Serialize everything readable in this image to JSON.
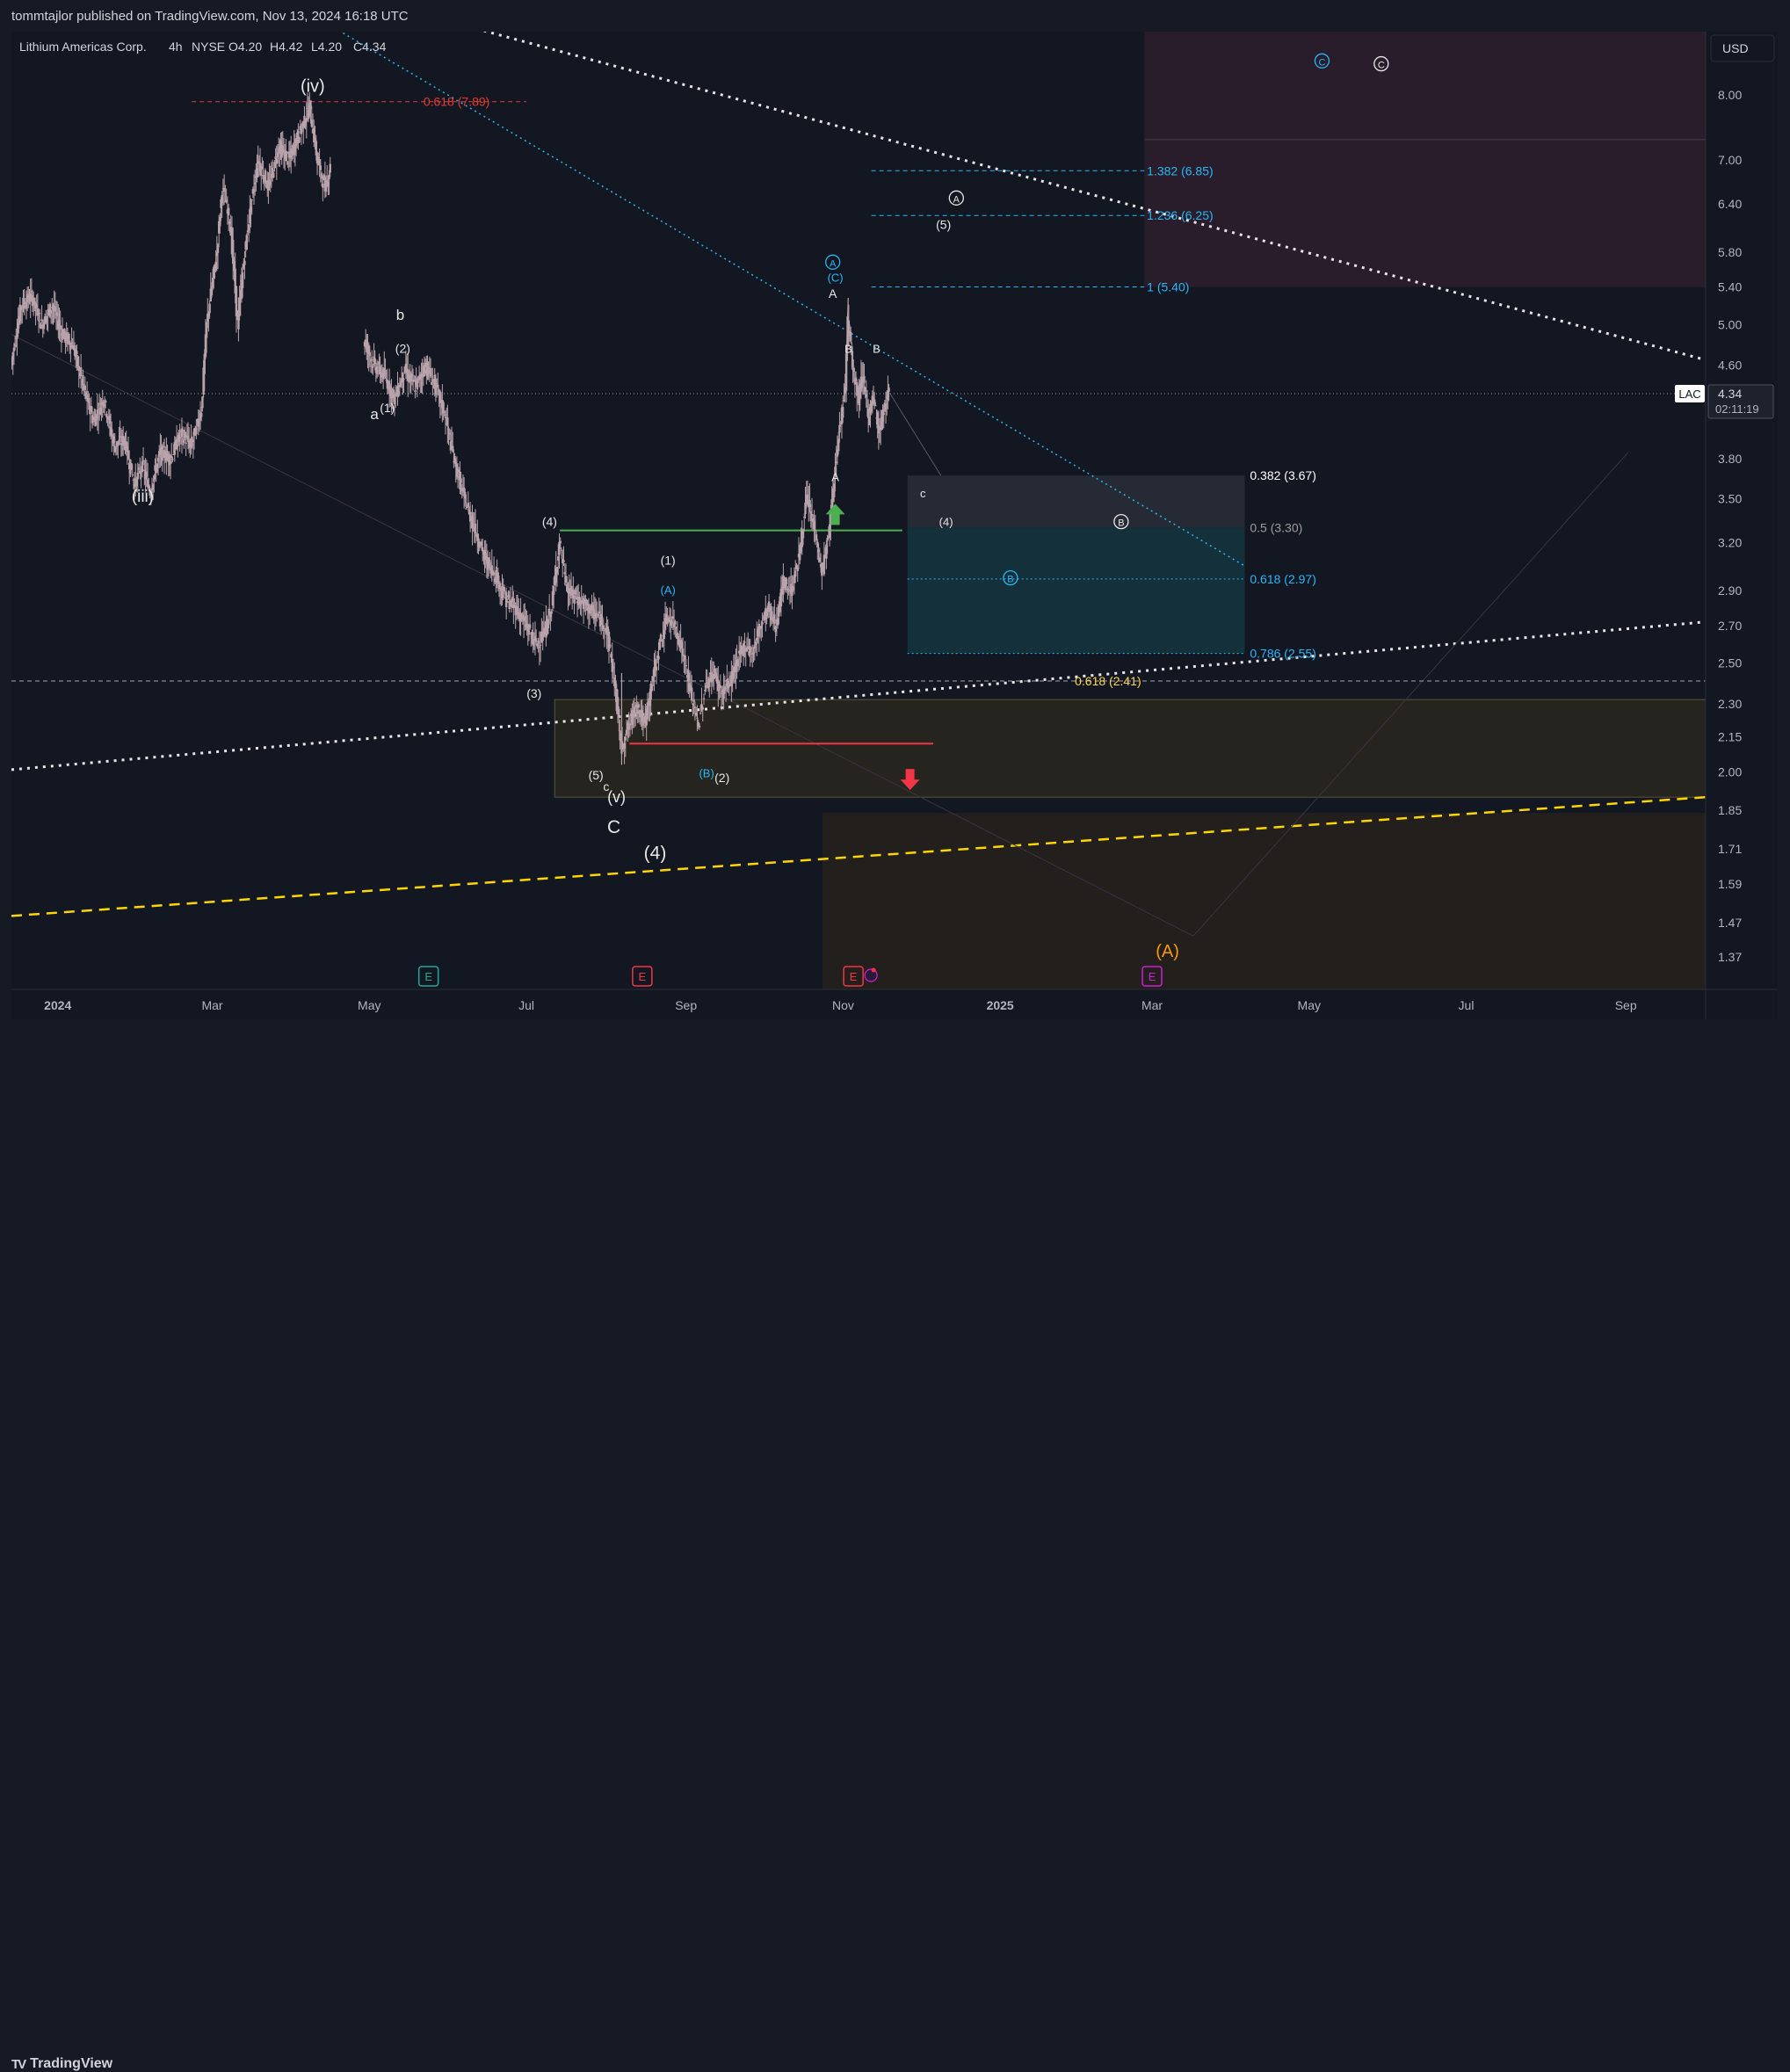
{
  "publisher_line": "tommtajlor published on TradingView.com, Nov 13, 2024 16:18 UTC",
  "brand": {
    "logo": "TV",
    "name": "TradingView"
  },
  "chart_data": {
    "type": "candlestick",
    "symbol_header": {
      "name": "Lithium Americas Corp.",
      "interval": "4h",
      "exchange": "NYSE",
      "open": "O4.20",
      "high": "H4.42",
      "low": "L4.20",
      "close": "C4.34"
    },
    "currency": "USD",
    "y_scale": "log",
    "ylim": [
      1.3,
      9.0
    ],
    "y_ticks": [
      "8.00",
      "7.00",
      "6.40",
      "5.80",
      "5.40",
      "5.00",
      "4.60",
      "3.80",
      "3.50",
      "3.20",
      "2.90",
      "2.70",
      "2.50",
      "2.30",
      "2.15",
      "2.00",
      "1.85",
      "1.71",
      "1.59",
      "1.47",
      "1.37"
    ],
    "x_ticks": [
      {
        "label": "2024",
        "day": 0
      },
      {
        "label": "Mar",
        "day": 60
      },
      {
        "label": "May",
        "day": 121
      },
      {
        "label": "Jul",
        "day": 182
      },
      {
        "label": "Sep",
        "day": 244
      },
      {
        "label": "Nov",
        "day": 305
      },
      {
        "label": "2025",
        "day": 366
      },
      {
        "label": "Mar",
        "day": 425
      },
      {
        "label": "May",
        "day": 486
      },
      {
        "label": "Jul",
        "day": 547
      },
      {
        "label": "Sep",
        "day": 609
      }
    ],
    "xlim_days": [
      -18,
      640
    ],
    "last_price": {
      "ticker": "LAC",
      "value": "4.34",
      "countdown": "02:11:19"
    },
    "price_path": [
      [
        -18,
        4.6
      ],
      [
        -14,
        5.2
      ],
      [
        -10,
        5.3
      ],
      [
        -6,
        5.0
      ],
      [
        -2,
        5.2
      ],
      [
        2,
        4.9
      ],
      [
        6,
        4.8
      ],
      [
        10,
        4.4
      ],
      [
        14,
        4.1
      ],
      [
        18,
        4.3
      ],
      [
        22,
        3.9
      ],
      [
        26,
        3.95
      ],
      [
        30,
        3.6
      ],
      [
        33,
        3.75
      ],
      [
        36,
        3.55
      ],
      [
        40,
        3.85
      ],
      [
        44,
        3.8
      ],
      [
        48,
        4.0
      ],
      [
        52,
        3.9
      ],
      [
        56,
        4.2
      ],
      [
        58,
        5.0
      ],
      [
        62,
        5.8
      ],
      [
        64,
        6.6
      ],
      [
        67,
        6.2
      ],
      [
        70,
        5.0
      ],
      [
        74,
        6.1
      ],
      [
        78,
        7.0
      ],
      [
        82,
        6.6
      ],
      [
        86,
        7.2
      ],
      [
        90,
        7.0
      ],
      [
        94,
        7.4
      ],
      [
        98,
        7.8
      ],
      [
        101,
        7.0
      ],
      [
        104,
        6.6
      ],
      [
        106,
        6.9
      ],
      [
        119,
        4.85
      ],
      [
        123,
        4.6
      ],
      [
        127,
        4.5
      ],
      [
        131,
        4.3
      ],
      [
        135,
        4.55
      ],
      [
        139,
        4.4
      ],
      [
        143,
        4.6
      ],
      [
        147,
        4.4
      ],
      [
        150,
        4.2
      ],
      [
        154,
        3.8
      ],
      [
        158,
        3.5
      ],
      [
        162,
        3.3
      ],
      [
        166,
        3.1
      ],
      [
        170,
        3.0
      ],
      [
        174,
        2.85
      ],
      [
        178,
        2.8
      ],
      [
        182,
        2.7
      ],
      [
        186,
        2.6
      ],
      [
        189,
        2.65
      ],
      [
        192,
        2.8
      ],
      [
        195,
        3.2
      ],
      [
        198,
        2.9
      ],
      [
        202,
        2.85
      ],
      [
        206,
        2.8
      ],
      [
        210,
        2.75
      ],
      [
        213,
        2.7
      ],
      [
        216,
        2.45
      ],
      [
        219,
        2.1
      ],
      [
        222,
        2.2
      ],
      [
        225,
        2.3
      ],
      [
        228,
        2.2
      ],
      [
        231,
        2.4
      ],
      [
        234,
        2.6
      ],
      [
        237,
        2.75
      ],
      [
        240,
        2.7
      ],
      [
        243,
        2.55
      ],
      [
        246,
        2.35
      ],
      [
        249,
        2.2
      ],
      [
        252,
        2.4
      ],
      [
        255,
        2.45
      ],
      [
        258,
        2.35
      ],
      [
        261,
        2.4
      ],
      [
        264,
        2.5
      ],
      [
        267,
        2.6
      ],
      [
        270,
        2.55
      ],
      [
        273,
        2.7
      ],
      [
        276,
        2.8
      ],
      [
        279,
        2.7
      ],
      [
        282,
        2.95
      ],
      [
        285,
        2.9
      ],
      [
        288,
        3.1
      ],
      [
        291,
        3.5
      ],
      [
        294,
        3.3
      ],
      [
        297,
        3.0
      ],
      [
        300,
        3.3
      ],
      [
        303,
        3.9
      ],
      [
        306,
        4.4
      ],
      [
        307,
        5.1
      ],
      [
        309,
        4.6
      ],
      [
        311,
        4.3
      ],
      [
        313,
        4.55
      ],
      [
        315,
        4.1
      ],
      [
        317,
        4.3
      ],
      [
        319,
        4.0
      ],
      [
        321,
        4.2
      ],
      [
        323,
        4.34
      ]
    ],
    "wave_labels_white": [
      "(iv)",
      "(iii)",
      "b",
      "(2)",
      "a",
      "(1)",
      "(4)",
      "(1)",
      "(3)",
      "(5)",
      "c",
      "(v)",
      "C",
      "(4)",
      "(2)",
      "(3)",
      "(5)",
      "A",
      "B",
      "c",
      "(4)",
      "A",
      "B"
    ],
    "wave_labels_white_circled": [
      "A",
      "B",
      "C"
    ],
    "wave_labels_cyan": [
      "(A)",
      "(B)",
      "(C)"
    ],
    "wave_labels_cyan_circled": [
      "A",
      "B",
      "C"
    ],
    "wave_label_orange": "(A)",
    "fib_levels": [
      {
        "label": "0.618 (7.89)",
        "price": 7.89,
        "color": "#e53935"
      },
      {
        "label": "1.382 (6.85)",
        "price": 6.85,
        "color": "#29b6f6"
      },
      {
        "label": "1.236 (6.25)",
        "price": 6.25,
        "color": "#29b6f6"
      },
      {
        "label": "1 (5.40)",
        "price": 5.4,
        "color": "#29b6f6"
      },
      {
        "label": "0.382 (3.67)",
        "price": 3.67,
        "color": "#ffffff"
      },
      {
        "label": "0.5 (3.30)",
        "price": 3.3,
        "color": "#9e9e9e"
      },
      {
        "label": "0.618 (2.97)",
        "price": 2.97,
        "color": "#29b6f6"
      },
      {
        "label": "0.786 (2.55)",
        "price": 2.55,
        "color": "#29b6f6"
      },
      {
        "label": "0.618 (2.41)",
        "price": 2.41,
        "color": "#ffd54f"
      }
    ],
    "earnings_markers": [
      "E",
      "E",
      "E",
      "E"
    ],
    "colors": {
      "background": "#131722",
      "candle": "#b9a3ab",
      "cyan": "#29b6f6",
      "green": "#4caf50",
      "red": "#f23645",
      "orange": "#ff9800",
      "yellow": "#ffd600",
      "purple": "#d01fd8"
    }
  }
}
